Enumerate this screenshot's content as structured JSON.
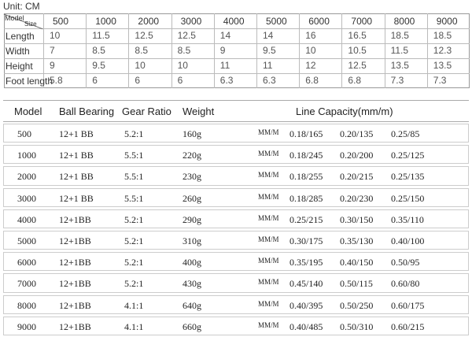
{
  "top": {
    "unit": "Unit: CM",
    "corner_row": "Model",
    "corner_col": "Size",
    "columns": [
      "500",
      "1000",
      "2000",
      "3000",
      "4000",
      "5000",
      "6000",
      "7000",
      "8000",
      "9000"
    ],
    "rows": [
      {
        "label": "Length",
        "values": [
          "10",
          "11.5",
          "12.5",
          "12.5",
          "14",
          "14",
          "16",
          "16.5",
          "18.5",
          "18.5"
        ]
      },
      {
        "label": "Width",
        "values": [
          "7",
          "8.5",
          "8.5",
          "8.5",
          "9",
          "9.5",
          "10",
          "10.5",
          "11.5",
          "12.3"
        ]
      },
      {
        "label": "Height",
        "values": [
          "9",
          "9.5",
          "10",
          "10",
          "11",
          "11",
          "12",
          "12.5",
          "13.5",
          "13.5"
        ]
      },
      {
        "label": "Foot length",
        "values": [
          "5.8",
          "6",
          "6",
          "6",
          "6.3",
          "6.3",
          "6.8",
          "6.8",
          "7.3",
          "7.3"
        ]
      }
    ]
  },
  "specs": {
    "headers": [
      "Model",
      "Ball Bearing",
      "Gear Ratio",
      "Weight",
      "Line Capacity(mm/m)"
    ],
    "rows": [
      [
        "500",
        "12+1 BB",
        "5.2:1",
        "160g",
        "MM/M",
        "0.18/165",
        "0.20/135",
        "0.25/85"
      ],
      [
        "1000",
        "12+1 BB",
        "5.5:1",
        "220g",
        "MM/M",
        "0.18/245",
        "0.20/200",
        "0.25/125"
      ],
      [
        "2000",
        "12+1 BB",
        "5.5:1",
        "230g",
        "MM/M",
        "0.18/255",
        "0.20/215",
        "0.25/135"
      ],
      [
        "3000",
        "12+1 BB",
        "5.5:1",
        "260g",
        "MM/M",
        "0.18/285",
        "0.20/230",
        "0.25/150"
      ],
      [
        "4000",
        "12+1BB",
        "5.2:1",
        "290g",
        "MM/M",
        "0.25/215",
        "0.30/150",
        "0.35/110"
      ],
      [
        "5000",
        "12+1BB",
        "5.2:1",
        "310g",
        "MM/M",
        "0.30/175",
        "0.35/130",
        "0.40/100"
      ],
      [
        "6000",
        "12+1BB",
        "5.2:1",
        "400g",
        "MM/M",
        "0.35/195",
        "0.40/150",
        "0.50/95"
      ],
      [
        "7000",
        "12+1BB",
        "5.2:1",
        "430g",
        "MM/M",
        "0.45/140",
        "0.50/115",
        "0.60/80"
      ],
      [
        "8000",
        "12+1BB",
        "4.1:1",
        "640g",
        "MM/M",
        "0.40/395",
        "0.50/250",
        "0.60/175"
      ],
      [
        "9000",
        "12+1BB",
        "4.1:1",
        "660g",
        "MM/M",
        "0.40/485",
        "0.50/310",
        "0.60/215"
      ]
    ]
  }
}
